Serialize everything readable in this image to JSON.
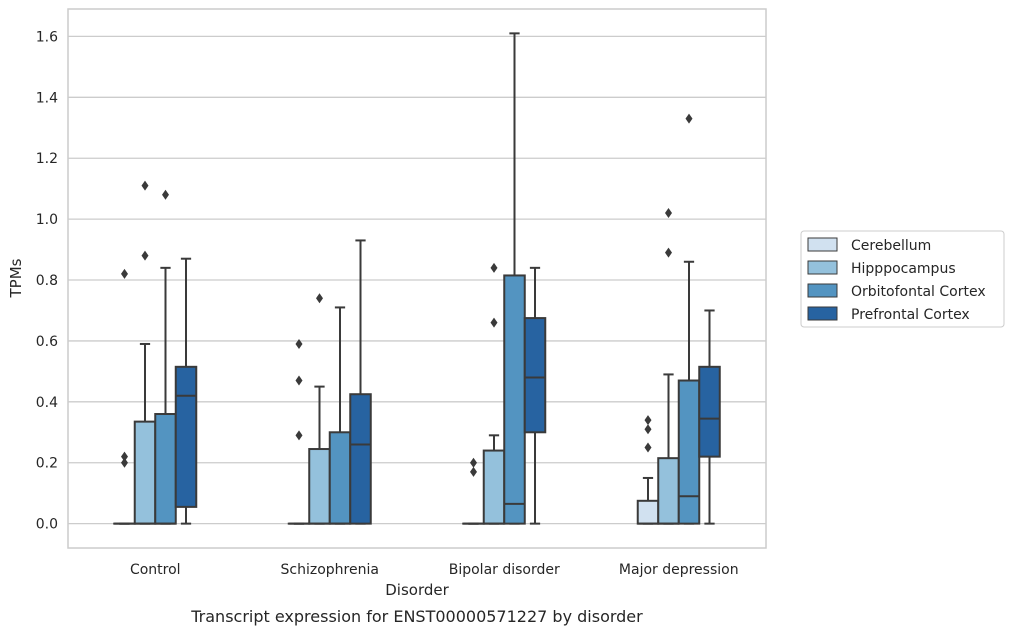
{
  "chart_data": {
    "type": "box",
    "title": "",
    "caption": "Transcript expression for ENST00000571227 by disorder",
    "xlabel": "Disorder",
    "ylabel": "TPMs",
    "ylim": [
      -0.08,
      1.69
    ],
    "yticks": [
      0.0,
      0.2,
      0.4,
      0.6,
      0.8,
      1.0,
      1.2,
      1.4,
      1.6
    ],
    "ytick_labels": [
      "0.0",
      "0.2",
      "0.4",
      "0.6",
      "0.8",
      "1.0",
      "1.2",
      "1.4",
      "1.6"
    ],
    "grid": "horizontal",
    "legend_position": "right",
    "categories": [
      "Control",
      "Schizophrenia",
      "Bipolar disorder",
      "Major depression"
    ],
    "series": [
      {
        "name": "Cerebellum",
        "color": "#d1e1f0",
        "boxes": [
          {
            "whisker_low": 0.0,
            "q1": 0.0,
            "median": 0.0,
            "q3": 0.0,
            "whisker_high": 0.0,
            "outliers": [
              0.2,
              0.22,
              0.82
            ]
          },
          {
            "whisker_low": 0.0,
            "q1": 0.0,
            "median": 0.0,
            "q3": 0.0,
            "whisker_high": 0.0,
            "outliers": [
              0.29,
              0.47,
              0.59
            ]
          },
          {
            "whisker_low": 0.0,
            "q1": 0.0,
            "median": 0.0,
            "q3": 0.0,
            "whisker_high": 0.0,
            "outliers": [
              0.17,
              0.2
            ]
          },
          {
            "whisker_low": 0.0,
            "q1": 0.0,
            "median": 0.0,
            "q3": 0.075,
            "whisker_high": 0.15,
            "outliers": [
              0.25,
              0.31,
              0.34
            ]
          }
        ]
      },
      {
        "name": "Hipppocampus",
        "color": "#94c1dc",
        "boxes": [
          {
            "whisker_low": 0.0,
            "q1": 0.0,
            "median": 0.0,
            "q3": 0.335,
            "whisker_high": 0.59,
            "outliers": [
              0.88,
              1.11
            ]
          },
          {
            "whisker_low": 0.0,
            "q1": 0.0,
            "median": 0.0,
            "q3": 0.245,
            "whisker_high": 0.45,
            "outliers": [
              0.74
            ]
          },
          {
            "whisker_low": 0.0,
            "q1": 0.0,
            "median": 0.0,
            "q3": 0.24,
            "whisker_high": 0.29,
            "outliers": [
              0.66,
              0.84
            ]
          },
          {
            "whisker_low": 0.0,
            "q1": 0.0,
            "median": 0.0,
            "q3": 0.215,
            "whisker_high": 0.49,
            "outliers": [
              0.89,
              1.02
            ]
          }
        ]
      },
      {
        "name": "Orbitofontal Cortex",
        "color": "#5394c1",
        "boxes": [
          {
            "whisker_low": 0.0,
            "q1": 0.0,
            "median": 0.0,
            "q3": 0.36,
            "whisker_high": 0.84,
            "outliers": [
              1.08
            ]
          },
          {
            "whisker_low": 0.0,
            "q1": 0.0,
            "median": 0.0,
            "q3": 0.3,
            "whisker_high": 0.71,
            "outliers": []
          },
          {
            "whisker_low": 0.0,
            "q1": 0.0,
            "median": 0.065,
            "q3": 0.815,
            "whisker_high": 1.61,
            "outliers": []
          },
          {
            "whisker_low": 0.0,
            "q1": 0.0,
            "median": 0.09,
            "q3": 0.47,
            "whisker_high": 0.86,
            "outliers": [
              1.33
            ]
          }
        ]
      },
      {
        "name": "Prefrontal Cortex",
        "color": "#2763a1",
        "boxes": [
          {
            "whisker_low": 0.0,
            "q1": 0.055,
            "median": 0.42,
            "q3": 0.515,
            "whisker_high": 0.87,
            "outliers": []
          },
          {
            "whisker_low": 0.0,
            "q1": 0.0,
            "median": 0.26,
            "q3": 0.425,
            "whisker_high": 0.93,
            "outliers": []
          },
          {
            "whisker_low": 0.0,
            "q1": 0.3,
            "median": 0.48,
            "q3": 0.675,
            "whisker_high": 0.84,
            "outliers": []
          },
          {
            "whisker_low": 0.0,
            "q1": 0.22,
            "median": 0.345,
            "q3": 0.515,
            "whisker_high": 0.7,
            "outliers": []
          }
        ]
      }
    ]
  }
}
